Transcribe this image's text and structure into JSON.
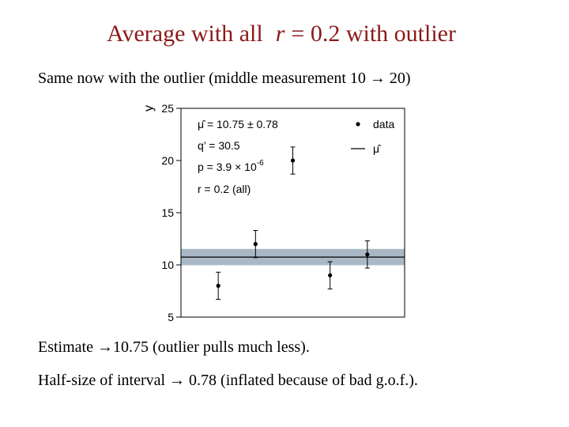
{
  "slide": {
    "title": {
      "pre": "Average with all",
      "var": "r",
      "post": "= 0.2 with outlier"
    },
    "intro": "Same now with the outlier (middle measurement 10 → 20)",
    "notes": [
      "Estimate →10.75 (outlier pulls much less).",
      "Half-size of interval → 0.78 (inflated because of bad g.o.f.)."
    ]
  },
  "chart_data": {
    "type": "errorbar",
    "y_label": "y",
    "x": [
      1,
      2,
      3,
      4,
      5
    ],
    "xlim": [
      0,
      6
    ],
    "ylim": [
      5,
      25
    ],
    "yticks": [
      5,
      10,
      15,
      20,
      25
    ],
    "series": [
      {
        "name": "data",
        "color": "#000000",
        "values": [
          8,
          12,
          20,
          9,
          11
        ],
        "errors": [
          1.3,
          1.3,
          1.3,
          1.3,
          1.3
        ]
      }
    ],
    "fit": {
      "name": "μ̂",
      "value": 10.75,
      "error": 0.78,
      "color": "#000000",
      "band_color": "#aab8c6"
    },
    "annotations": [
      "μ̂ = 10.75 ± 0.78",
      "q’ = 30.5"
    ],
    "p_value": {
      "base": "p = 3.9 × 10",
      "exp": "-6"
    },
    "r_note": "r = 0.2 (all)"
  }
}
